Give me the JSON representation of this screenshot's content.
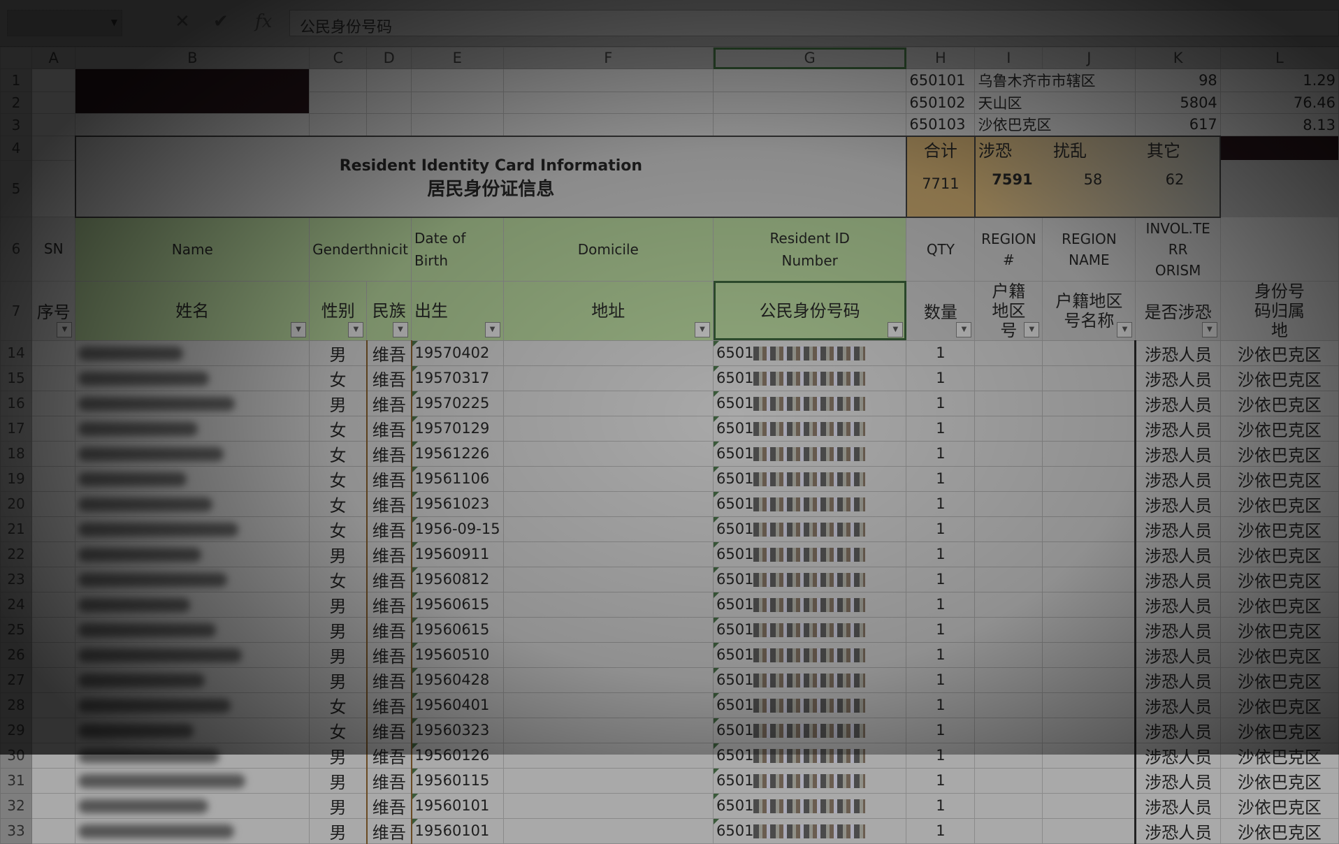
{
  "formula_bar": {
    "name_box": "",
    "fx": "fx",
    "content": "公民身份号码"
  },
  "columns": [
    "A",
    "B",
    "C",
    "D",
    "E",
    "F",
    "G",
    "H",
    "I",
    "J",
    "K",
    "L"
  ],
  "lookup": [
    {
      "row": "1",
      "code": "650101",
      "name": "乌鲁木齐市市辖区",
      "count": "98",
      "pct": "1.29"
    },
    {
      "row": "2",
      "code": "650102",
      "name": "天山区",
      "count": "5804",
      "pct": "76.46"
    },
    {
      "row": "3",
      "code": "650103",
      "name": "沙依巴克区",
      "count": "617",
      "pct": "8.13"
    }
  ],
  "summary": {
    "total_label": "合计",
    "total": "7711",
    "terror_label": "涉恐",
    "terror": "7591",
    "disturb_label": "扰乱",
    "disturb": "58",
    "other_label": "其它",
    "other": "62"
  },
  "title": {
    "en": "Resident Identity Card Information",
    "cn": "居民身份证信息"
  },
  "headers_en": {
    "sn": "SN",
    "name": "Name",
    "gender_eth": "Genderthnicit",
    "dob": "Date of Birth",
    "domicile": "Domicile",
    "id": "Resident ID Number",
    "qty": "QTY",
    "region_no": "REGION #",
    "region_name": "REGION NAME",
    "terror": "INVOL.TE RR ORISM"
  },
  "headers_cn": {
    "sn": "序号",
    "name": "姓名",
    "gender": "性别",
    "eth": "民族",
    "dob": "出生",
    "domicile": "地址",
    "id": "公民身份号码",
    "qty": "数量",
    "region_no": "户籍地区号",
    "region_name": "户籍地区号名称",
    "terror": "是否涉恐",
    "origin": "身份号码归属地"
  },
  "rows": [
    {
      "n": "14",
      "g": "男",
      "dob": "19570402"
    },
    {
      "n": "15",
      "g": "女",
      "dob": "19570317"
    },
    {
      "n": "16",
      "g": "男",
      "dob": "19570225"
    },
    {
      "n": "17",
      "g": "女",
      "dob": "19570129"
    },
    {
      "n": "18",
      "g": "女",
      "dob": "19561226"
    },
    {
      "n": "19",
      "g": "女",
      "dob": "19561106"
    },
    {
      "n": "20",
      "g": "女",
      "dob": "19561023"
    },
    {
      "n": "21",
      "g": "女",
      "dob": "1956-09-15"
    },
    {
      "n": "22",
      "g": "男",
      "dob": "19560911"
    },
    {
      "n": "23",
      "g": "女",
      "dob": "19560812"
    },
    {
      "n": "24",
      "g": "男",
      "dob": "19560615"
    },
    {
      "n": "25",
      "g": "男",
      "dob": "19560615"
    },
    {
      "n": "26",
      "g": "男",
      "dob": "19560510"
    },
    {
      "n": "27",
      "g": "男",
      "dob": "19560428"
    },
    {
      "n": "28",
      "g": "女",
      "dob": "19560401"
    },
    {
      "n": "29",
      "g": "女",
      "dob": "19560323"
    },
    {
      "n": "30",
      "g": "男",
      "dob": "19560126"
    },
    {
      "n": "31",
      "g": "男",
      "dob": "19560115"
    },
    {
      "n": "32",
      "g": "男",
      "dob": "19560101"
    },
    {
      "n": "33",
      "g": "男",
      "dob": "19560101"
    }
  ],
  "row_defaults": {
    "eth": "维吾",
    "id_prefix": "6501",
    "qty": "1",
    "terror": "涉恐人员",
    "origin": "沙依巴克区"
  },
  "colors": {
    "header_green": "#8fa77b",
    "summary_tan": "#a08658",
    "dark_fill": "#1e1014"
  }
}
